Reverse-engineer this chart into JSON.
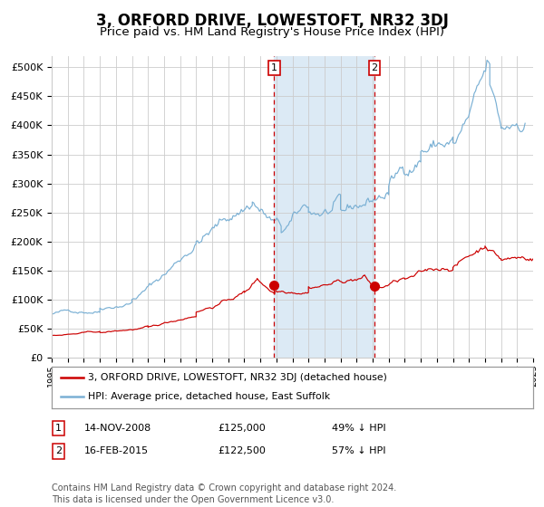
{
  "title": "3, ORFORD DRIVE, LOWESTOFT, NR32 3DJ",
  "subtitle": "Price paid vs. HM Land Registry's House Price Index (HPI)",
  "title_fontsize": 12,
  "subtitle_fontsize": 9.5,
  "background_color": "#ffffff",
  "plot_bg_color": "#ffffff",
  "grid_color": "#cccccc",
  "hpi_color": "#7ab0d4",
  "price_color": "#cc0000",
  "marker_color": "#cc0000",
  "vline_color": "#cc0000",
  "shade_color": "#dceaf5",
  "ylim": [
    0,
    520000
  ],
  "yticks": [
    0,
    50000,
    100000,
    150000,
    200000,
    250000,
    300000,
    350000,
    400000,
    450000,
    500000
  ],
  "xlabel_fontsize": 7,
  "ylabel_fontsize": 8,
  "sale1_date": 2008.87,
  "sale1_price": 125000,
  "sale1_label": "1",
  "sale2_date": 2015.12,
  "sale2_price": 122500,
  "sale2_label": "2",
  "legend_line1": "3, ORFORD DRIVE, LOWESTOFT, NR32 3DJ (detached house)",
  "legend_line2": "HPI: Average price, detached house, East Suffolk",
  "table_row1": [
    "1",
    "14-NOV-2008",
    "£125,000",
    "49% ↓ HPI"
  ],
  "table_row2": [
    "2",
    "16-FEB-2015",
    "£122,500",
    "57% ↓ HPI"
  ],
  "footer": "Contains HM Land Registry data © Crown copyright and database right 2024.\nThis data is licensed under the Open Government Licence v3.0.",
  "footer_fontsize": 7
}
